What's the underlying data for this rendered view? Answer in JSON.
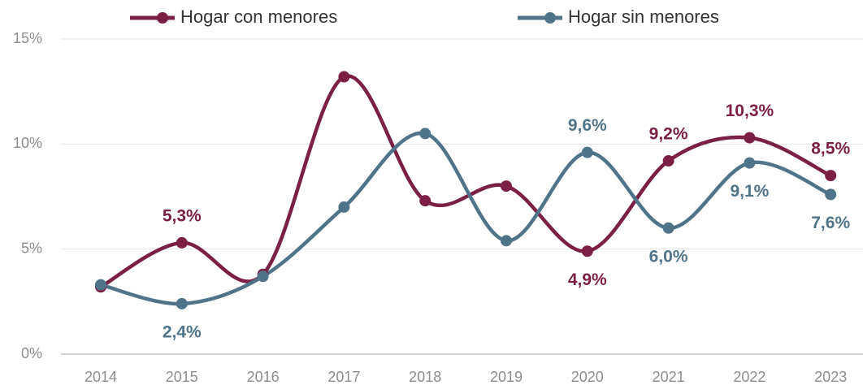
{
  "chart_data": {
    "type": "line",
    "categories": [
      "2014",
      "2015",
      "2016",
      "2017",
      "2018",
      "2019",
      "2020",
      "2021",
      "2022",
      "2023"
    ],
    "series": [
      {
        "name": "Hogar con menores",
        "color": "#7b1f45",
        "values": [
          3.2,
          5.3,
          3.8,
          13.2,
          7.3,
          8.0,
          4.9,
          9.2,
          10.3,
          8.5
        ],
        "value_labels": [
          null,
          "5,3%",
          null,
          null,
          null,
          null,
          "4,9%",
          "9,2%",
          "10,3%",
          "8,5%"
        ]
      },
      {
        "name": "Hogar sin menores",
        "color": "#4f7489",
        "values": [
          3.3,
          2.4,
          3.7,
          7.0,
          10.5,
          5.4,
          9.6,
          6.0,
          9.1,
          7.6
        ],
        "value_labels": [
          null,
          "2,4%",
          null,
          null,
          null,
          null,
          "9,6%",
          "6,0%",
          "9,1%",
          "7,6%"
        ]
      }
    ],
    "ylim": [
      0,
      15
    ],
    "yticks": [
      {
        "value": 0,
        "label": "0%"
      },
      {
        "value": 5,
        "label": "5%"
      },
      {
        "value": 10,
        "label": "10%"
      },
      {
        "value": 15,
        "label": "15%"
      }
    ],
    "grid": true,
    "legend": "top"
  }
}
